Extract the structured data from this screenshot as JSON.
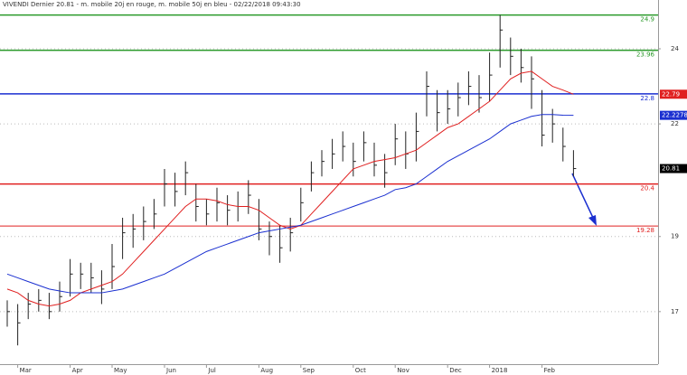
{
  "chart_data": {
    "type": "ohlc",
    "title": "VIVENDI Dernier 20.81 - m. mobile 20j en rouge, m. mobile 50j en bleu - 02/22/2018 09:43:30",
    "categories": [
      null,
      "Mar",
      null,
      null,
      null,
      null,
      "Apr",
      null,
      null,
      null,
      "May",
      null,
      null,
      null,
      null,
      "Jun",
      null,
      null,
      null,
      "Jul",
      null,
      null,
      null,
      null,
      "Aug",
      null,
      null,
      null,
      "Sep",
      null,
      null,
      null,
      null,
      "Oct",
      null,
      null,
      null,
      "Nov",
      null,
      null,
      null,
      null,
      "Dec",
      null,
      null,
      null,
      "2018",
      null,
      null,
      null,
      null,
      "Feb",
      null,
      null,
      null
    ],
    "high": [
      17.3,
      17.2,
      17.5,
      17.6,
      17.5,
      17.8,
      18.4,
      18.3,
      18.3,
      18.1,
      18.8,
      19.5,
      19.6,
      19.8,
      20.0,
      20.8,
      20.7,
      21.0,
      20.4,
      20.0,
      20.3,
      20.1,
      20.2,
      20.5,
      20.0,
      19.4,
      19.3,
      19.5,
      20.3,
      21.0,
      21.3,
      21.6,
      21.8,
      21.5,
      21.8,
      21.5,
      21.2,
      22.0,
      21.8,
      22.3,
      23.4,
      22.9,
      22.9,
      23.1,
      23.4,
      23.3,
      23.9,
      24.9,
      24.3,
      24.0,
      23.8,
      22.9,
      22.4,
      21.9,
      21.3
    ],
    "low": [
      16.6,
      16.1,
      16.8,
      17.0,
      16.8,
      17.0,
      17.4,
      17.6,
      17.5,
      17.2,
      17.6,
      18.4,
      18.7,
      18.9,
      19.2,
      19.8,
      19.8,
      20.1,
      19.4,
      19.3,
      19.4,
      19.3,
      19.4,
      19.6,
      18.9,
      18.5,
      18.3,
      18.6,
      19.4,
      20.2,
      20.6,
      20.8,
      21.0,
      20.6,
      21.0,
      20.6,
      20.3,
      20.9,
      20.8,
      21.0,
      22.2,
      21.8,
      22.0,
      22.2,
      22.5,
      22.3,
      22.6,
      23.5,
      23.3,
      23.1,
      22.4,
      21.4,
      21.5,
      21.0,
      20.6
    ],
    "close": [
      17.0,
      16.7,
      17.2,
      17.3,
      17.0,
      17.4,
      18.0,
      18.0,
      17.9,
      17.6,
      18.2,
      19.1,
      19.2,
      19.4,
      19.6,
      20.4,
      20.2,
      20.7,
      19.8,
      19.6,
      19.9,
      19.7,
      19.8,
      20.1,
      19.2,
      19.0,
      18.7,
      19.1,
      19.9,
      20.7,
      21.0,
      21.2,
      21.4,
      21.0,
      21.5,
      20.9,
      20.7,
      21.6,
      21.2,
      21.8,
      23.0,
      22.3,
      22.4,
      22.7,
      23.0,
      22.7,
      23.3,
      24.5,
      23.8,
      23.5,
      23.2,
      21.7,
      22.0,
      21.4,
      20.81
    ],
    "bar_color": "#222222",
    "series": [
      {
        "color": "#e02020",
        "values": [
          17.6,
          17.5,
          17.3,
          17.2,
          17.15,
          17.2,
          17.3,
          17.5,
          17.6,
          17.7,
          17.8,
          18.0,
          18.3,
          18.6,
          18.9,
          19.2,
          19.5,
          19.8,
          20.0,
          20.0,
          19.95,
          19.85,
          19.8,
          19.8,
          19.7,
          19.5,
          19.3,
          19.2,
          19.3,
          19.6,
          19.9,
          20.2,
          20.5,
          20.8,
          20.9,
          21.0,
          21.05,
          21.1,
          21.2,
          21.3,
          21.5,
          21.7,
          21.9,
          22.0,
          22.2,
          22.4,
          22.6,
          22.9,
          23.2,
          23.35,
          23.4,
          23.2,
          23.0,
          22.9,
          22.79
        ]
      },
      {
        "color": "#1a2fd0",
        "values": [
          18.0,
          17.9,
          17.8,
          17.7,
          17.6,
          17.55,
          17.5,
          17.5,
          17.5,
          17.5,
          17.55,
          17.6,
          17.7,
          17.8,
          17.9,
          18.0,
          18.15,
          18.3,
          18.45,
          18.6,
          18.7,
          18.8,
          18.9,
          19.0,
          19.1,
          19.15,
          19.2,
          19.25,
          19.3,
          19.4,
          19.5,
          19.6,
          19.7,
          19.8,
          19.9,
          20.0,
          20.1,
          20.25,
          20.3,
          20.4,
          20.6,
          20.8,
          21.0,
          21.15,
          21.3,
          21.45,
          21.6,
          21.8,
          22.0,
          22.1,
          22.2,
          22.25,
          22.25,
          22.23,
          22.2278
        ]
      }
    ],
    "levels": [
      {
        "value": 24.9,
        "color": "#2a9a2a"
      },
      {
        "value": 23.96,
        "color": "#2a9a2a"
      },
      {
        "value": 22.8,
        "color": "#1a2fd0"
      },
      {
        "value": 20.4,
        "color": "#e02020"
      },
      {
        "value": 19.28,
        "color": "#e02020"
      }
    ],
    "price_tags": [
      {
        "value": 22.79,
        "color": "#e02020"
      },
      {
        "value": 22.2278,
        "color": "#1a2fd0"
      },
      {
        "value": 20.81,
        "color": "#000000"
      }
    ],
    "ylim": [
      15.6,
      25.3
    ],
    "yticks": [
      17,
      19,
      22,
      24
    ],
    "grid": true
  }
}
